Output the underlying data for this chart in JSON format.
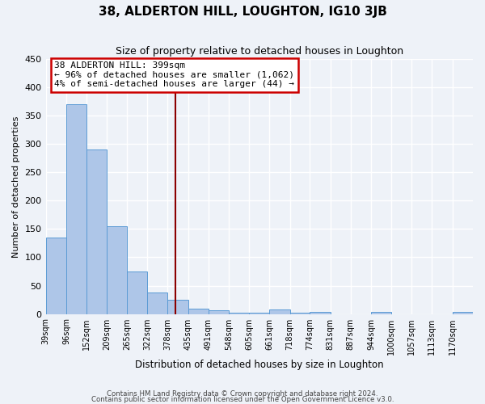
{
  "title": "38, ALDERTON HILL, LOUGHTON, IG10 3JB",
  "subtitle": "Size of property relative to detached houses in Loughton",
  "xlabel": "Distribution of detached houses by size in Loughton",
  "ylabel": "Number of detached properties",
  "bar_values": [
    135,
    370,
    290,
    155,
    75,
    38,
    25,
    10,
    6,
    2,
    2,
    8,
    2,
    4,
    0,
    0,
    4,
    0,
    0,
    0,
    4
  ],
  "bar_labels": [
    "39sqm",
    "96sqm",
    "152sqm",
    "209sqm",
    "265sqm",
    "322sqm",
    "378sqm",
    "435sqm",
    "491sqm",
    "548sqm",
    "605sqm",
    "661sqm",
    "718sqm",
    "774sqm",
    "831sqm",
    "887sqm",
    "944sqm",
    "1000sqm",
    "1057sqm",
    "1113sqm",
    "1170sqm"
  ],
  "bin_edges": [
    39,
    96,
    152,
    209,
    265,
    322,
    378,
    435,
    491,
    548,
    605,
    661,
    718,
    774,
    831,
    887,
    944,
    1000,
    1057,
    1113,
    1170,
    1227
  ],
  "bar_color": "#aec6e8",
  "bar_edge_color": "#5b9bd5",
  "property_value": 399,
  "vline_color": "#8b0000",
  "annotation_line1": "38 ALDERTON HILL: 399sqm",
  "annotation_line2": "← 96% of detached houses are smaller (1,062)",
  "annotation_line3": "4% of semi-detached houses are larger (44) →",
  "annotation_box_color": "#ffffff",
  "annotation_box_edge": "#cc0000",
  "ylim": [
    0,
    450
  ],
  "yticks": [
    0,
    50,
    100,
    150,
    200,
    250,
    300,
    350,
    400,
    450
  ],
  "footer1": "Contains HM Land Registry data © Crown copyright and database right 2024.",
  "footer2": "Contains public sector information licensed under the Open Government Licence v3.0.",
  "bg_color": "#eef2f8",
  "grid_color": "#ffffff"
}
